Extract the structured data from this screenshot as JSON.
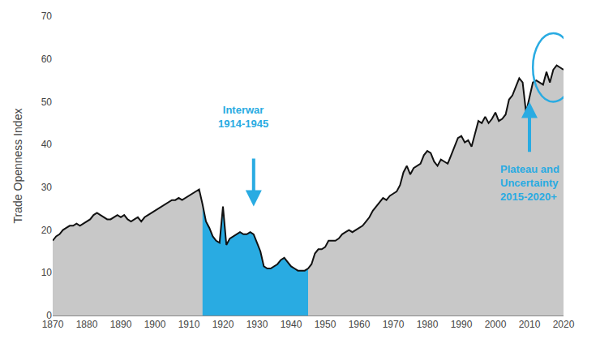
{
  "chart_data": {
    "type": "area",
    "ylabel": "Trade Openness Index",
    "x": [
      1870,
      1871,
      1872,
      1873,
      1874,
      1875,
      1876,
      1877,
      1878,
      1879,
      1880,
      1881,
      1882,
      1883,
      1884,
      1885,
      1886,
      1887,
      1888,
      1889,
      1890,
      1891,
      1892,
      1893,
      1894,
      1895,
      1896,
      1897,
      1898,
      1899,
      1900,
      1901,
      1902,
      1903,
      1904,
      1905,
      1906,
      1907,
      1908,
      1909,
      1910,
      1911,
      1912,
      1913,
      1914,
      1915,
      1916,
      1917,
      1918,
      1919,
      1920,
      1921,
      1922,
      1923,
      1924,
      1925,
      1926,
      1927,
      1928,
      1929,
      1930,
      1931,
      1932,
      1933,
      1934,
      1935,
      1936,
      1937,
      1938,
      1939,
      1940,
      1941,
      1942,
      1943,
      1944,
      1945,
      1946,
      1947,
      1948,
      1949,
      1950,
      1951,
      1952,
      1953,
      1954,
      1955,
      1956,
      1957,
      1958,
      1959,
      1960,
      1961,
      1962,
      1963,
      1964,
      1965,
      1966,
      1967,
      1968,
      1969,
      1970,
      1971,
      1972,
      1973,
      1974,
      1975,
      1976,
      1977,
      1978,
      1979,
      1980,
      1981,
      1982,
      1983,
      1984,
      1985,
      1986,
      1987,
      1988,
      1989,
      1990,
      1991,
      1992,
      1993,
      1994,
      1995,
      1996,
      1997,
      1998,
      1999,
      2000,
      2001,
      2002,
      2003,
      2004,
      2005,
      2006,
      2007,
      2008,
      2009,
      2010,
      2011,
      2012,
      2013,
      2014,
      2015,
      2016,
      2017,
      2018,
      2019,
      2020
    ],
    "values": [
      17.5,
      18.5,
      19.0,
      20.0,
      20.5,
      21.0,
      21.0,
      21.5,
      21.0,
      21.5,
      22.0,
      22.5,
      23.5,
      24.0,
      23.5,
      23.0,
      22.5,
      22.5,
      23.0,
      23.5,
      23.0,
      23.5,
      22.5,
      22.0,
      22.5,
      23.0,
      22.0,
      23.0,
      23.5,
      24.0,
      24.5,
      25.0,
      25.5,
      26.0,
      26.5,
      27.0,
      27.0,
      27.5,
      27.0,
      27.5,
      28.0,
      28.5,
      29.0,
      29.5,
      26.0,
      22.0,
      20.5,
      18.5,
      17.5,
      17.0,
      25.5,
      16.5,
      18.0,
      18.5,
      19.0,
      19.5,
      19.0,
      19.0,
      19.5,
      19.0,
      17.0,
      15.0,
      11.5,
      11.0,
      11.0,
      11.5,
      12.0,
      13.0,
      13.5,
      12.5,
      11.5,
      11.0,
      10.5,
      10.5,
      10.5,
      11.0,
      12.0,
      14.5,
      15.5,
      15.5,
      16.0,
      17.5,
      17.5,
      17.5,
      18.0,
      19.0,
      19.5,
      20.0,
      19.5,
      20.0,
      20.5,
      21.0,
      22.0,
      23.0,
      24.5,
      25.5,
      26.5,
      27.5,
      27.0,
      28.0,
      28.5,
      29.0,
      30.5,
      33.5,
      35.0,
      33.0,
      34.5,
      35.0,
      35.5,
      37.5,
      38.5,
      38.0,
      36.0,
      35.0,
      36.5,
      36.0,
      35.5,
      37.5,
      39.5,
      41.5,
      42.0,
      40.5,
      41.0,
      39.5,
      42.5,
      45.5,
      45.0,
      46.5,
      45.0,
      46.0,
      47.5,
      45.5,
      46.0,
      47.0,
      50.5,
      51.5,
      53.5,
      55.5,
      54.5,
      47.5,
      51.0,
      54.5,
      55.0,
      54.5,
      54.0,
      57.0,
      54.5,
      57.5,
      58.5,
      58.0,
      57.5
    ],
    "color": "#111111",
    "regions": [
      {
        "x": [
          1870,
          2020
        ],
        "color": "#C8C8C8"
      },
      {
        "x": [
          1914,
          1945
        ],
        "color": "#29ABE2"
      }
    ],
    "annotations": [
      {
        "text": "Interwar\n1914-1945",
        "color": "#29ABE2"
      },
      {
        "text": "Plateau and\nUncertainty\n2015-2020+",
        "color": "#29ABE2"
      }
    ],
    "xlim": [
      1870,
      2020
    ],
    "ylim": [
      0,
      70
    ],
    "xticks": [
      1870,
      1880,
      1890,
      1900,
      1910,
      1920,
      1930,
      1940,
      1950,
      1960,
      1970,
      1980,
      1990,
      2000,
      2010,
      2020
    ],
    "yticks": [
      0,
      10,
      20,
      30,
      40,
      50,
      60,
      70
    ],
    "grid": false
  }
}
